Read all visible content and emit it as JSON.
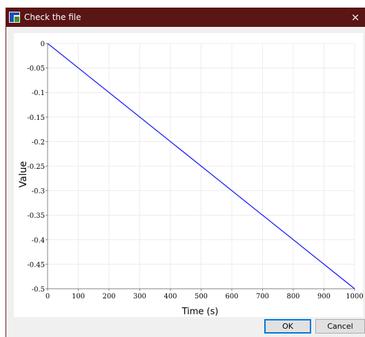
{
  "window": {
    "title": "Check the file",
    "close_glyph": "×",
    "app_icon": "fds-app-icon"
  },
  "buttons": {
    "ok_label": "OK",
    "cancel_label": "Cancel"
  },
  "colors": {
    "titlebar": "#5a1515",
    "series": "#1a1aff",
    "grid": "#ececec"
  },
  "chart_data": {
    "type": "line",
    "xlabel": "Time (s)",
    "ylabel": "Value",
    "xlim": [
      0,
      1000
    ],
    "ylim": [
      -0.5,
      0
    ],
    "xticks": [
      0,
      100,
      200,
      300,
      400,
      500,
      600,
      700,
      800,
      900,
      1000
    ],
    "xtick_labels": [
      "0",
      "100",
      "200",
      "300",
      "400",
      "500",
      "600",
      "700",
      "800",
      "900",
      "1000"
    ],
    "yticks": [
      0,
      -0.05,
      -0.1,
      -0.15,
      -0.2,
      -0.25,
      -0.3,
      -0.35,
      -0.4,
      -0.45,
      -0.5
    ],
    "ytick_labels": [
      "0",
      "-0.05",
      "-0.1",
      "-0.15",
      "-0.2",
      "-0.25",
      "-0.3",
      "-0.35",
      "-0.4",
      "-0.45",
      "-0.5"
    ],
    "grid": true,
    "series": [
      {
        "x": [
          0,
          1000
        ],
        "y": [
          0,
          -0.5
        ]
      }
    ]
  }
}
